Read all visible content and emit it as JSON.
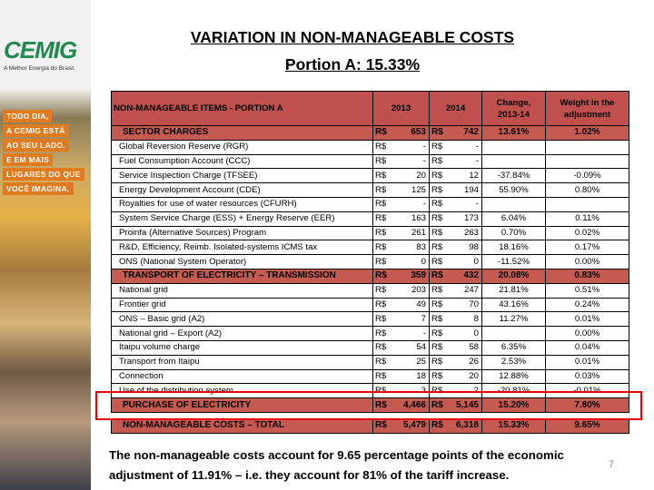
{
  "sidebar": {
    "logo": "CEMIG",
    "slogan": "A Melhor Energia do Brasil.",
    "tagline": [
      "TODO DIA,",
      "A CEMIG ESTÁ",
      "AO SEU LADO.",
      "E EM MAIS",
      "LUGARES DO QUE",
      "VOCÊ IMAGINA."
    ]
  },
  "header": {
    "title": "VARIATION IN NON-MANAGEABLE COSTS",
    "subtitle": "Portion A: 15.33%"
  },
  "table": {
    "columns": [
      "NON-MANAGEABLE ITEMS - PORTION A",
      "2013",
      "2014",
      "Change, 2013-14",
      "Weight in the adjustment"
    ],
    "sections": [
      {
        "label": "SECTOR CHARGES",
        "cur13": "R$",
        "v13": "653",
        "cur14": "R$",
        "v14": "742",
        "change": "13.61%",
        "weight": "1.02%",
        "items": [
          {
            "label": "Global Reversion Reserve (RGR)",
            "cur13": "R$",
            "v13": "-",
            "cur14": "R$",
            "v14": "-"
          },
          {
            "label": "Fuel Consumption Account (CCC)",
            "cur13": "R$",
            "v13": "-",
            "cur14": "R$",
            "v14": "-"
          },
          {
            "label": "Service Inspection Charge (TFSEE)",
            "cur13": "R$",
            "v13": "20",
            "cur14": "R$",
            "v14": "12",
            "change": "-37.84%",
            "weight": "-0.09%"
          },
          {
            "label": "Energy Development Account (CDE)",
            "cur13": "R$",
            "v13": "125",
            "cur14": "R$",
            "v14": "194",
            "change": "55.90%",
            "weight": "0.80%"
          },
          {
            "label": "Royalties for use of water resources (CFURH)",
            "cur13": "R$",
            "v13": "-",
            "cur14": "R$",
            "v14": "-"
          },
          {
            "label": "System Service Charge (ESS) + Energy Reserve (EER)",
            "cur13": "R$",
            "v13": "163",
            "cur14": "R$",
            "v14": "173",
            "change": "6.04%",
            "weight": "0.11%"
          },
          {
            "label": "Proinfa (Alternative Sources) Program",
            "cur13": "R$",
            "v13": "261",
            "cur14": "R$",
            "v14": "263",
            "change": "0.70%",
            "weight": "0.02%"
          },
          {
            "label": "R&D, Efficiency, Reimb. Isolated-systems ICMS tax",
            "cur13": "R$",
            "v13": "83",
            "cur14": "R$",
            "v14": "98",
            "change": "18.16%",
            "weight": "0.17%"
          },
          {
            "label": "ONS (National System Operator)",
            "cur13": "R$",
            "v13": "0",
            "cur14": "R$",
            "v14": "0",
            "change": "-11.52%",
            "weight": "0.00%"
          }
        ]
      },
      {
        "label": "TRANSPORT OF ELECTRICITY – TRANSMISSION",
        "cur13": "R$",
        "v13": "359",
        "cur14": "R$",
        "v14": "432",
        "change": "20.08%",
        "weight": "0.83%",
        "items": [
          {
            "label": "National grid",
            "cur13": "R$",
            "v13": "203",
            "cur14": "R$",
            "v14": "247",
            "change": "21.81%",
            "weight": "0.51%"
          },
          {
            "label": "Frontier grid",
            "cur13": "R$",
            "v13": "49",
            "cur14": "R$",
            "v14": "70",
            "change": "43.16%",
            "weight": "0.24%"
          },
          {
            "label": "ONS – Basic grid (A2)",
            "cur13": "R$",
            "v13": "7",
            "cur14": "R$",
            "v14": "8",
            "change": "11.27%",
            "weight": "0.01%"
          },
          {
            "label": "National grid – Export (A2)",
            "cur13": "R$",
            "v13": "-",
            "cur14": "R$",
            "v14": "0",
            "weight": "0.00%"
          },
          {
            "label": "Itaipu volume charge",
            "cur13": "R$",
            "v13": "54",
            "cur14": "R$",
            "v14": "58",
            "change": "6.35%",
            "weight": "0.04%"
          },
          {
            "label": "Transport from Itaipu",
            "cur13": "R$",
            "v13": "25",
            "cur14": "R$",
            "v14": "26",
            "change": "2.53%",
            "weight": "0.01%"
          },
          {
            "label": "Connection",
            "cur13": "R$",
            "v13": "18",
            "cur14": "R$",
            "v14": "20",
            "change": "12.88%",
            "weight": "0.03%"
          },
          {
            "label": "Use of the distribution system",
            "cur13": "R$",
            "v13": "3",
            "cur14": "R$",
            "v14": "2",
            "change": "-20.81%",
            "weight": "-0.01%"
          }
        ]
      },
      {
        "label": "PURCHASE OF ELECTRICITY",
        "cur13": "R$",
        "v13": "4,466",
        "cur14": "R$",
        "v14": "5,145",
        "change": "15.20%",
        "weight": "7.80%",
        "items": []
      }
    ],
    "total": {
      "label": "NON-MANAGEABLE COSTS – TOTAL",
      "cur13": "R$",
      "v13": "5,479",
      "cur14": "R$",
      "v14": "6,318",
      "change": "15.33%",
      "weight": "9.65%"
    }
  },
  "footer": {
    "text": [
      "The non-manageable costs account for 9.65 percentage points of the economic",
      "adjustment of 11.91% – i.e. they account for 81% of the tariff increase."
    ],
    "page": "7"
  }
}
